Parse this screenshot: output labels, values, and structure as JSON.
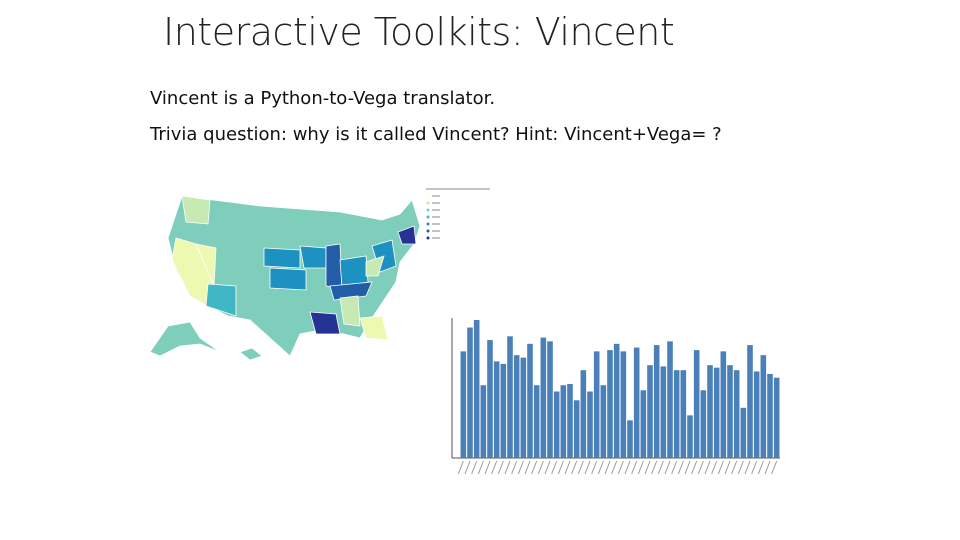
{
  "header": {
    "title": "Interactive Toolkits: Vincent"
  },
  "body": {
    "lines": [
      "Vincent is a Python-to-Vega translator.",
      "Trivia question: why is it called Vincent? Hint: Vincent+Vega= ?"
    ]
  },
  "chart_data": {
    "type": "bar",
    "color": "#4a7fb8",
    "categories": [
      null,
      null,
      null,
      null,
      null,
      null,
      null,
      null,
      null,
      null,
      null,
      null,
      null,
      null,
      null,
      null,
      null,
      null,
      null,
      null,
      null,
      null,
      null,
      null,
      null,
      null,
      null,
      null,
      null,
      null,
      null,
      null,
      null,
      null,
      null,
      null,
      null,
      null,
      null,
      null,
      null,
      null,
      null,
      null,
      null,
      null,
      null,
      null
    ],
    "values": [
      8.5,
      10.4,
      11.0,
      5.8,
      9.4,
      7.7,
      7.5,
      9.7,
      8.2,
      8.0,
      9.1,
      5.8,
      9.6,
      9.3,
      5.3,
      5.8,
      5.9,
      4.6,
      7.0,
      5.3,
      8.5,
      5.8,
      8.6,
      9.1,
      8.5,
      3.0,
      8.8,
      5.4,
      7.4,
      9.0,
      7.3,
      9.3,
      7.0,
      7.0,
      3.4,
      8.6,
      5.4,
      7.4,
      7.2,
      8.5,
      7.4,
      7.0,
      4.0,
      9.0,
      6.9,
      8.2,
      6.7,
      6.4
    ],
    "ylim": [
      0,
      11
    ]
  }
}
